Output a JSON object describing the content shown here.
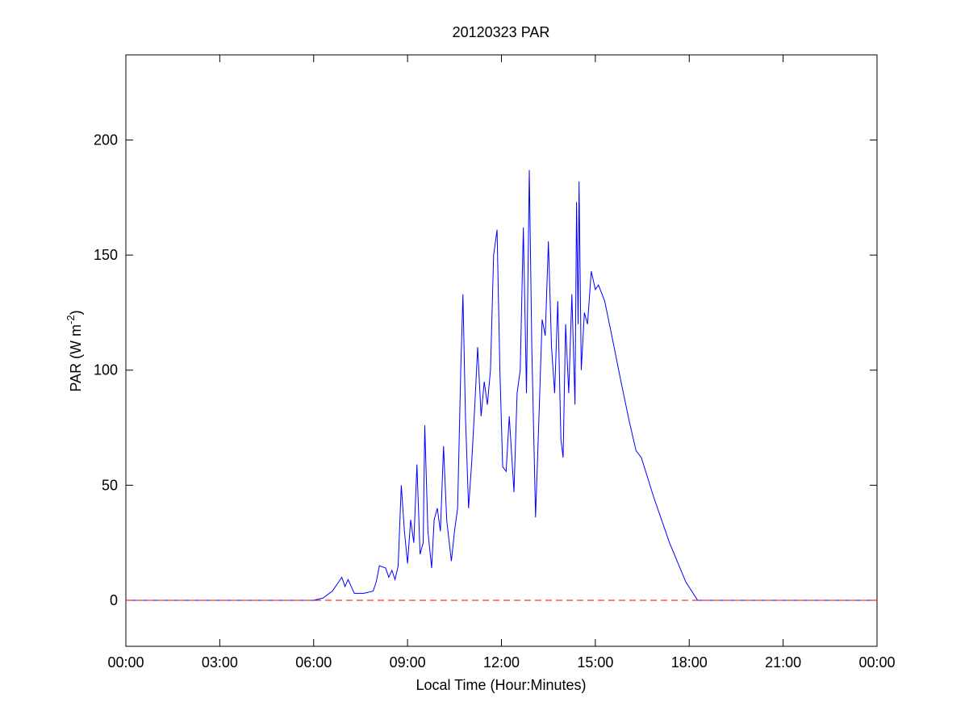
{
  "chart_data": {
    "type": "line",
    "title": "20120323 PAR",
    "xlabel": "Local Time (Hour:Minutes)",
    "ylabel": {
      "text": "PAR (W m",
      "superscript": "-2",
      "end": ")"
    },
    "xlim": [
      0,
      24
    ],
    "xticks": [
      {
        "value": 0,
        "label": "00:00"
      },
      {
        "value": 3,
        "label": "03:00"
      },
      {
        "value": 6,
        "label": "06:00"
      },
      {
        "value": 9,
        "label": "09:00"
      },
      {
        "value": 12,
        "label": "12:00"
      },
      {
        "value": 15,
        "label": "15:00"
      },
      {
        "value": 18,
        "label": "18:00"
      },
      {
        "value": 21,
        "label": "21:00"
      },
      {
        "value": 24,
        "label": "00:00"
      }
    ],
    "ylim": [
      -20,
      237
    ],
    "yticks": [
      0,
      50,
      100,
      150,
      200
    ],
    "grid": false,
    "x": [
      0,
      6.0,
      6.3,
      6.6,
      6.8,
      6.9,
      7.0,
      7.1,
      7.3,
      7.6,
      7.9,
      8.0,
      8.1,
      8.3,
      8.4,
      8.5,
      8.6,
      8.7,
      8.8,
      8.9,
      9.0,
      9.1,
      9.2,
      9.3,
      9.4,
      9.5,
      9.55,
      9.65,
      9.77,
      9.85,
      9.95,
      10.05,
      10.15,
      10.25,
      10.4,
      10.5,
      10.6,
      10.7,
      10.77,
      10.85,
      10.95,
      11.05,
      11.15,
      11.24,
      11.35,
      11.45,
      11.55,
      11.65,
      11.75,
      11.86,
      11.95,
      12.04,
      12.15,
      12.25,
      12.4,
      12.5,
      12.6,
      12.7,
      12.8,
      12.89,
      12.97,
      13.09,
      13.2,
      13.3,
      13.4,
      13.5,
      13.6,
      13.7,
      13.8,
      13.9,
      13.97,
      14.05,
      14.15,
      14.25,
      14.35,
      14.4,
      14.45,
      14.48,
      14.55,
      14.65,
      14.75,
      14.87,
      15.0,
      15.1,
      15.3,
      15.57,
      15.82,
      16.08,
      16.3,
      16.47,
      16.86,
      17.37,
      17.89,
      18.27,
      24
    ],
    "series": [
      {
        "color": "#0000ff",
        "values": [
          0,
          0,
          1,
          4,
          8,
          10,
          6,
          9,
          3,
          3,
          4,
          8,
          15,
          14,
          10,
          13,
          9,
          15,
          50,
          30,
          16,
          35,
          25,
          59,
          20,
          25,
          76,
          30,
          14,
          35,
          40,
          30,
          67,
          35,
          17,
          30,
          40,
          100,
          133,
          80,
          40,
          60,
          85,
          110,
          80,
          95,
          85,
          100,
          150,
          161,
          100,
          58,
          56,
          80,
          47,
          90,
          100,
          162,
          90,
          187,
          110,
          36,
          80,
          122,
          115,
          156,
          110,
          90,
          130,
          70,
          62,
          120,
          90,
          133,
          85,
          173,
          120,
          182,
          100,
          125,
          120,
          143,
          135,
          137,
          130,
          112,
          95,
          78,
          65,
          62,
          45,
          25,
          8,
          0,
          0
        ]
      }
    ],
    "reference_line": {
      "value": 0,
      "color": "#ff0000",
      "style": "dashed"
    }
  }
}
